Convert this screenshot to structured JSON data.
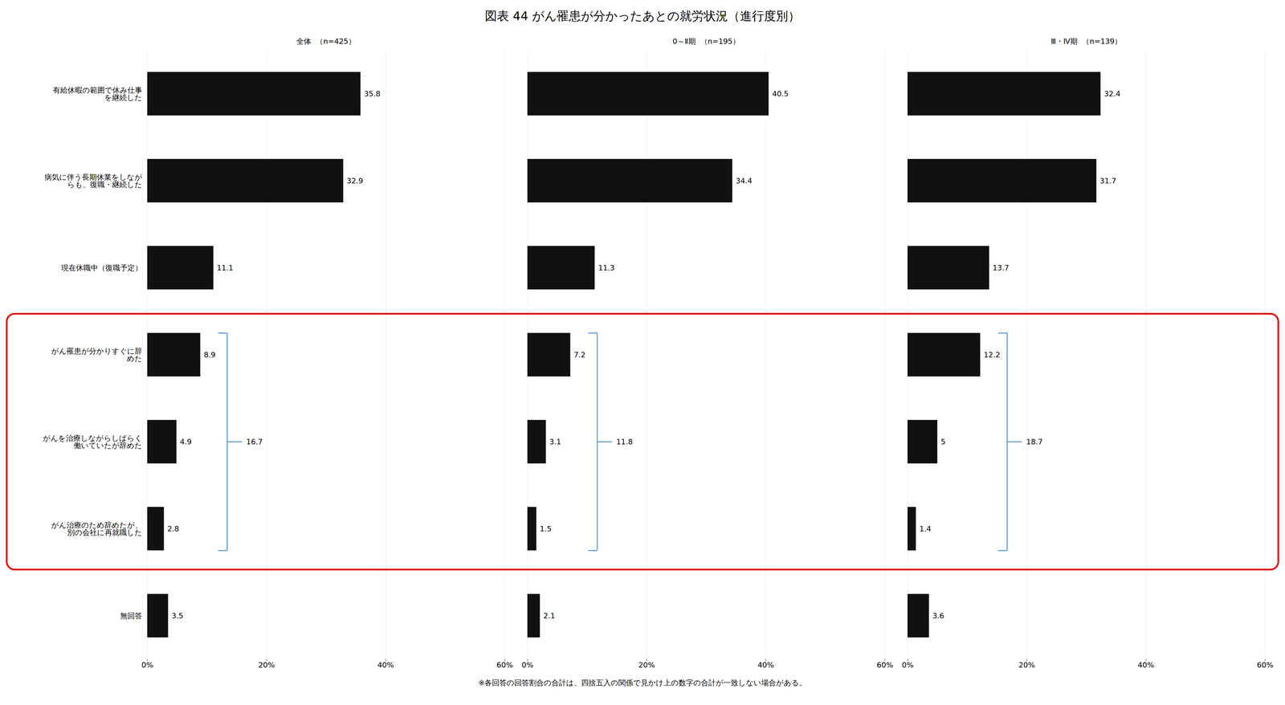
{
  "chart_data": {
    "type": "bar",
    "orientation": "horizontal",
    "title": "図表  44  がん罹患が分かったあとの就労状況（進行度別）",
    "caption": "※各回答の回答割合の合計は、四捨五入の関係で見かけ上の数字の合計が一致しない場合がある。",
    "categories": [
      "有給休暇の範囲で休み仕事\nを継続した",
      "病気に伴う長期休業をしなが\nらも、復職・継続した",
      "現在休職中（復職予定）",
      "がん罹患が分かりすぐに辞\nめた",
      "がんを治療しながらしばらく\n働いていたが辞めた",
      "がん治療のため辞めたが、\n別の会社に再就職した",
      "無回答"
    ],
    "series": [
      {
        "name": "全体  （n=425）",
        "color": "#111111",
        "values": [
          35.8,
          32.9,
          11.1,
          8.9,
          4.9,
          2.8,
          3.5
        ]
      },
      {
        "name": "0～Ⅱ期  （n=195）",
        "color": "#111111",
        "values": [
          40.5,
          34.4,
          11.3,
          7.2,
          3.1,
          1.5,
          2.1
        ]
      },
      {
        "name": "Ⅲ・Ⅳ期  （n=139）",
        "color": "#111111",
        "values": [
          32.4,
          31.7,
          13.7,
          12.2,
          5.0,
          1.4,
          3.6
        ]
      }
    ],
    "xlim": [
      0,
      60
    ],
    "xticks": [
      {
        "value": 0,
        "label": "0%"
      },
      {
        "value": 20,
        "label": "20%"
      },
      {
        "value": 40,
        "label": "40%"
      },
      {
        "value": 60,
        "label": "60%"
      }
    ],
    "grid": true,
    "data_labels": true,
    "annotations": [
      {
        "type": "box",
        "categories": [
          "がん罹患が分かりすぐに辞\nめた",
          "がんを治療しながらしばらく\n働いていたが辞めた",
          "がん治療のため辞めたが、\n別の会社に再就職した"
        ],
        "color": "#dd0000"
      },
      {
        "type": "bracket",
        "categories": [
          "がん罹患が分かりすぐに辞\nめた",
          "がんを治療しながらしばらく\n働いていたが辞めた",
          "がん治療のため辞めたが、\n別の会社に再就職した"
        ],
        "color": "#5b9bd5",
        "values": [
          16.7,
          11.8,
          18.7
        ]
      }
    ]
  }
}
